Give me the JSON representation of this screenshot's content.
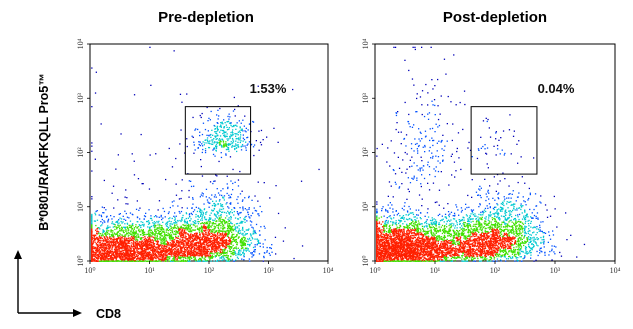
{
  "chart_data": [
    {
      "type": "scatter",
      "title": "Pre-depletion",
      "gate_percent": "1.53%",
      "xscale": "log",
      "yscale": "log",
      "xlim": [
        1,
        10000
      ],
      "ylim": [
        1,
        10000
      ],
      "x_ticks": [
        "10⁰",
        "10¹",
        "10²",
        "10³",
        "10⁴"
      ],
      "y_ticks": [
        "10⁰",
        "10¹",
        "10²",
        "10³",
        "10⁴"
      ],
      "gate": {
        "x": [
          40,
          500
        ],
        "y": [
          40,
          700
        ]
      },
      "populations": [
        {
          "cx": 2.5,
          "cy": 1.3,
          "sx": 0.5,
          "sy": 0.3,
          "n": 2200
        },
        {
          "cx": 40,
          "cy": 1.5,
          "sx": 0.55,
          "sy": 0.33,
          "n": 2000
        },
        {
          "cx": 150,
          "cy": 2.5,
          "sx": 0.3,
          "sy": 0.45,
          "n": 700
        },
        {
          "cx": 180,
          "cy": 150,
          "sx": 0.25,
          "sy": 0.28,
          "n": 330
        },
        {
          "cx": 30,
          "cy": 30,
          "sx": 1.0,
          "sy": 1.0,
          "n": 90
        }
      ]
    },
    {
      "type": "scatter",
      "title": "Post-depletion",
      "gate_percent": "0.04%",
      "xscale": "log",
      "yscale": "log",
      "xlim": [
        1,
        10000
      ],
      "ylim": [
        1,
        10000
      ],
      "x_ticks": [
        "10⁰",
        "10¹",
        "10²",
        "10³",
        "10⁴"
      ],
      "y_ticks": [
        "10⁰",
        "10¹",
        "10²",
        "10³",
        "10⁴"
      ],
      "gate": {
        "x": [
          40,
          500
        ],
        "y": [
          40,
          700
        ]
      },
      "populations": [
        {
          "cx": 2.5,
          "cy": 1.4,
          "sx": 0.45,
          "sy": 0.32,
          "n": 3000
        },
        {
          "cx": 50,
          "cy": 1.6,
          "sx": 0.5,
          "sy": 0.33,
          "n": 1700
        },
        {
          "cx": 150,
          "cy": 2.8,
          "sx": 0.3,
          "sy": 0.45,
          "n": 600
        },
        {
          "cx": 6,
          "cy": 60,
          "sx": 0.3,
          "sy": 1.0,
          "n": 220
        },
        {
          "cx": 100,
          "cy": 100,
          "sx": 0.3,
          "sy": 0.35,
          "n": 45
        }
      ]
    }
  ],
  "axes": {
    "ylabel": "B*0801/RAKFKQLL Pro5™",
    "xlabel": "CD8"
  },
  "colors": {
    "sparse": "#0000b8",
    "low": "#0050ff",
    "mid": "#00c8d0",
    "high": "#40e000",
    "peak": "#ff2000"
  }
}
